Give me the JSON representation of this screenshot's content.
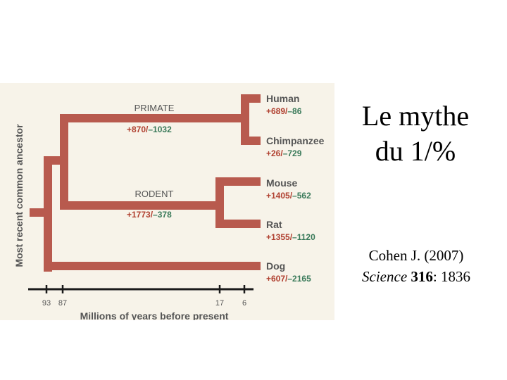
{
  "slide": {
    "title_line1": "Le mythe",
    "title_line2": "du 1/%",
    "citation_line1": "Cohen J. (2007)",
    "citation_journal": "Science",
    "citation_volume": "316",
    "citation_rest": ": 1836"
  },
  "tree": {
    "y_axis_label": "Most recent common ancestor",
    "x_axis_label": "Millions of years before present",
    "ticks": [
      "93",
      "87",
      "17",
      "6"
    ],
    "primate": {
      "label": "PRIMATE",
      "change": "+870/–1032"
    },
    "rodent": {
      "label": "RODENT",
      "change": "+1773/–378"
    },
    "leaves": [
      {
        "name": "Human",
        "change": "+689/–86"
      },
      {
        "name": "Chimpanzee",
        "change": "+26/–729"
      },
      {
        "name": "Mouse",
        "change": "+1405/–562"
      },
      {
        "name": "Rat",
        "change": "+1355/–1120"
      },
      {
        "name": "Dog",
        "change": "+607/–2165"
      }
    ],
    "colors": {
      "branch": "#b85a4e",
      "label": "#555555",
      "gain": "#b04030",
      "loss": "#3a7a5a",
      "background": "#f7f3e9"
    }
  }
}
